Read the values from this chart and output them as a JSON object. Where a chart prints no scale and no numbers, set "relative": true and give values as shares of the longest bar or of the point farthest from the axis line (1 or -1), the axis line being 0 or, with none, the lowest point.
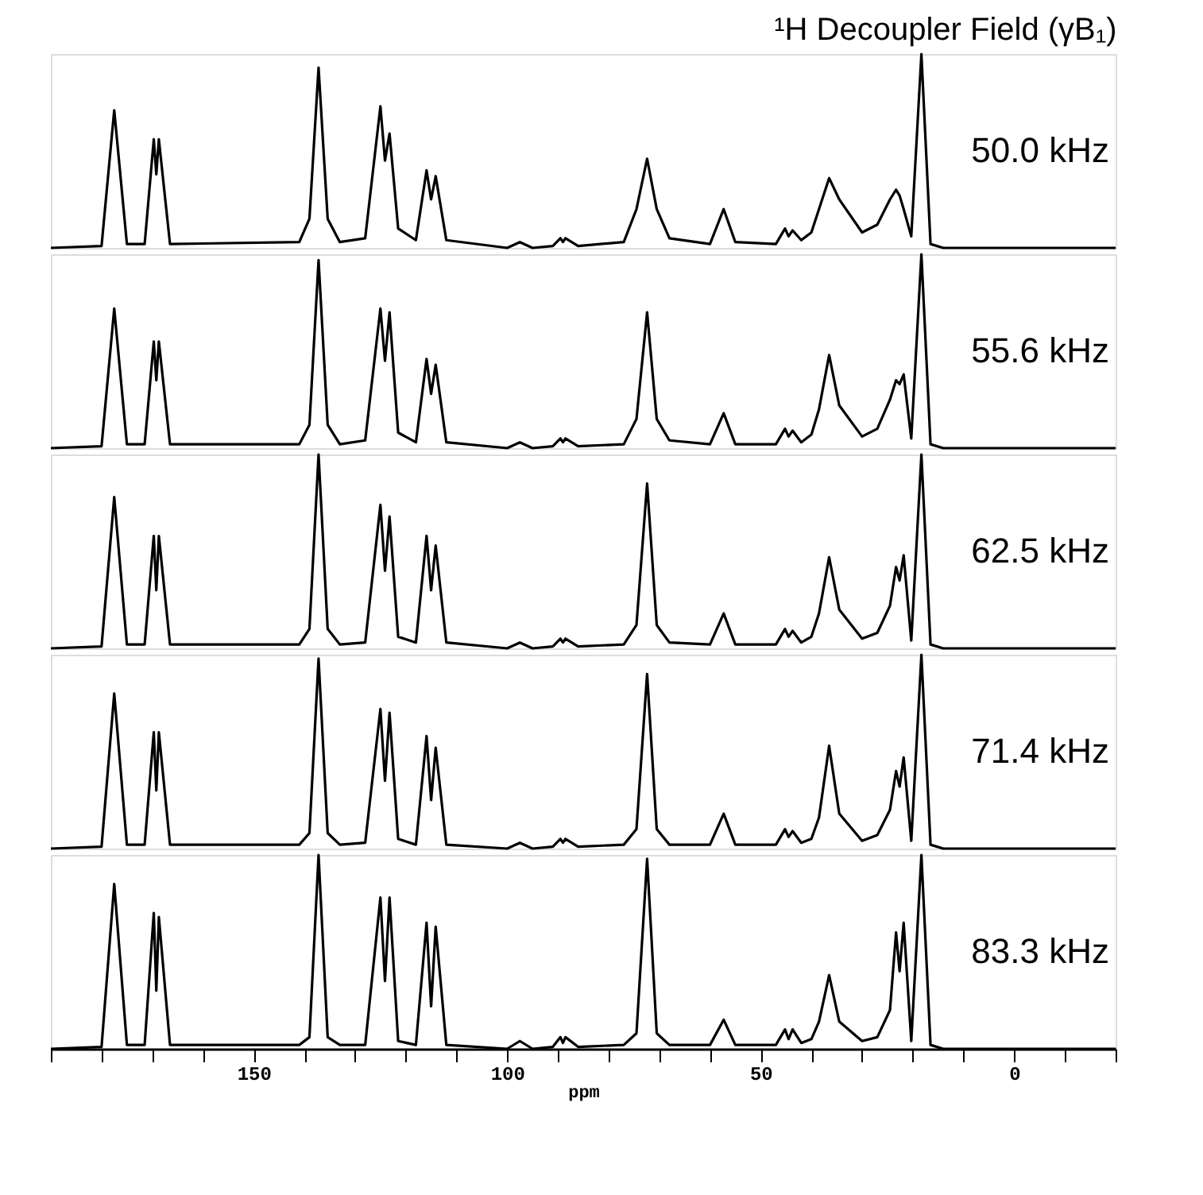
{
  "chart_data": [
    {
      "type": "line",
      "title": "¹H Decoupler Field (γB₁)",
      "relative": true,
      "tick_labels": false,
      "xlim": [
        190,
        -20
      ],
      "line_style": "solid",
      "x": [
        190,
        180,
        177.5,
        175,
        171.5,
        169.7,
        169.2,
        168.7,
        166.5,
        141,
        139,
        137.2,
        135.4,
        133,
        128,
        125,
        124.1,
        123.2,
        121.5,
        118,
        115.9,
        115,
        114.1,
        112,
        100,
        97.5,
        95,
        91,
        89.5,
        89,
        88.5,
        86,
        77,
        74.5,
        72.4,
        70.5,
        68,
        60,
        57.3,
        55,
        47,
        45.2,
        44.5,
        43.7,
        42,
        40,
        38.5,
        36.5,
        34.5,
        30,
        27,
        24.5,
        23.3,
        22.6,
        21.8,
        20.3,
        18.3,
        16.5,
        14,
        -20
      ],
      "series": [
        {
          "name": "50.0 kHz",
          "color": "#000000",
          "values": [
            0,
            0.01,
            0.71,
            0.02,
            0.02,
            0.56,
            0.38,
            0.56,
            0.02,
            0.03,
            0.15,
            0.93,
            0.15,
            0.03,
            0.05,
            0.73,
            0.45,
            0.59,
            0.1,
            0.04,
            0.4,
            0.25,
            0.37,
            0.04,
            0,
            0.03,
            0,
            0.01,
            0.05,
            0.03,
            0.05,
            0.01,
            0.03,
            0.2,
            0.46,
            0.2,
            0.05,
            0.02,
            0.2,
            0.03,
            0.02,
            0.1,
            0.06,
            0.09,
            0.04,
            0.08,
            0.2,
            0.36,
            0.25,
            0.08,
            0.12,
            0.25,
            0.3,
            0.27,
            0.2,
            0.06,
            1,
            0.02,
            0,
            0
          ]
        }
      ]
    },
    {
      "type": "line",
      "relative": true,
      "tick_labels": false,
      "xlim": [
        190,
        -20
      ],
      "line_style": "solid",
      "x": [
        190,
        180,
        177.5,
        175,
        171.5,
        169.7,
        169.2,
        168.7,
        166.5,
        141,
        139,
        137.2,
        135.4,
        133,
        128,
        125,
        124.1,
        123.2,
        121.5,
        118,
        115.9,
        115,
        114.1,
        112,
        100,
        97.5,
        95,
        91,
        89.5,
        89,
        88.5,
        86,
        77,
        74.5,
        72.4,
        70.5,
        68,
        60,
        57.3,
        55,
        47,
        45.2,
        44.5,
        43.7,
        42,
        40,
        38.5,
        36.5,
        34.5,
        30,
        27,
        24.5,
        23.3,
        22.6,
        21.8,
        20.3,
        18.3,
        16.5,
        14,
        -20
      ],
      "series": [
        {
          "name": "55.6 kHz",
          "color": "#000000",
          "values": [
            0,
            0.01,
            0.72,
            0.02,
            0.02,
            0.55,
            0.35,
            0.55,
            0.02,
            0.02,
            0.12,
            0.97,
            0.12,
            0.02,
            0.04,
            0.72,
            0.45,
            0.7,
            0.08,
            0.03,
            0.46,
            0.28,
            0.43,
            0.03,
            0,
            0.03,
            0,
            0.01,
            0.05,
            0.03,
            0.05,
            0.01,
            0.02,
            0.15,
            0.7,
            0.15,
            0.04,
            0.02,
            0.18,
            0.02,
            0.02,
            0.1,
            0.06,
            0.09,
            0.03,
            0.07,
            0.2,
            0.48,
            0.22,
            0.06,
            0.1,
            0.25,
            0.35,
            0.33,
            0.38,
            0.05,
            1,
            0.02,
            0,
            0
          ]
        }
      ]
    },
    {
      "type": "line",
      "relative": true,
      "tick_labels": false,
      "xlim": [
        190,
        -20
      ],
      "line_style": "solid",
      "x": [
        190,
        180,
        177.5,
        175,
        171.5,
        169.7,
        169.2,
        168.7,
        166.5,
        141,
        139,
        137.2,
        135.4,
        133,
        128,
        125,
        124.1,
        123.2,
        121.5,
        118,
        115.9,
        115,
        114.1,
        112,
        100,
        97.5,
        95,
        91,
        89.5,
        89,
        88.5,
        86,
        77,
        74.5,
        72.4,
        70.5,
        68,
        60,
        57.3,
        55,
        47,
        45.2,
        44.5,
        43.7,
        42,
        40,
        38.5,
        36.5,
        34.5,
        30,
        27,
        24.5,
        23.3,
        22.6,
        21.8,
        20.3,
        18.3,
        16.5,
        14,
        -20
      ],
      "series": [
        {
          "name": "62.5 kHz",
          "color": "#000000",
          "values": [
            0,
            0.01,
            0.78,
            0.02,
            0.02,
            0.58,
            0.3,
            0.58,
            0.02,
            0.02,
            0.1,
            1,
            0.1,
            0.02,
            0.03,
            0.74,
            0.4,
            0.68,
            0.06,
            0.03,
            0.58,
            0.3,
            0.53,
            0.03,
            0,
            0.03,
            0,
            0.01,
            0.05,
            0.03,
            0.05,
            0.01,
            0.02,
            0.12,
            0.85,
            0.12,
            0.03,
            0.02,
            0.18,
            0.02,
            0.02,
            0.1,
            0.06,
            0.09,
            0.03,
            0.06,
            0.18,
            0.47,
            0.2,
            0.05,
            0.08,
            0.22,
            0.42,
            0.35,
            0.48,
            0.04,
            1,
            0.02,
            0,
            0
          ]
        }
      ]
    },
    {
      "type": "line",
      "relative": true,
      "tick_labels": false,
      "xlim": [
        190,
        -20
      ],
      "line_style": "solid",
      "x": [
        190,
        180,
        177.5,
        175,
        171.5,
        169.7,
        169.2,
        168.7,
        166.5,
        141,
        139,
        137.2,
        135.4,
        133,
        128,
        125,
        124.1,
        123.2,
        121.5,
        118,
        115.9,
        115,
        114.1,
        112,
        100,
        97.5,
        95,
        91,
        89.5,
        89,
        88.5,
        86,
        77,
        74.5,
        72.4,
        70.5,
        68,
        60,
        57.3,
        55,
        47,
        45.2,
        44.5,
        43.7,
        42,
        40,
        38.5,
        36.5,
        34.5,
        30,
        27,
        24.5,
        23.3,
        22.6,
        21.8,
        20.3,
        18.3,
        16.5,
        14,
        -20
      ],
      "series": [
        {
          "name": "71.4 kHz",
          "color": "#000000",
          "values": [
            0,
            0.01,
            0.8,
            0.02,
            0.02,
            0.6,
            0.3,
            0.6,
            0.02,
            0.02,
            0.08,
            0.98,
            0.08,
            0.02,
            0.03,
            0.72,
            0.35,
            0.7,
            0.05,
            0.02,
            0.58,
            0.25,
            0.52,
            0.02,
            0,
            0.03,
            0,
            0.01,
            0.05,
            0.03,
            0.05,
            0.01,
            0.02,
            0.1,
            0.9,
            0.1,
            0.02,
            0.02,
            0.18,
            0.02,
            0.02,
            0.1,
            0.06,
            0.09,
            0.03,
            0.05,
            0.16,
            0.53,
            0.18,
            0.04,
            0.07,
            0.2,
            0.4,
            0.32,
            0.47,
            0.04,
            1,
            0.02,
            0,
            0
          ]
        }
      ]
    },
    {
      "type": "line",
      "relative": true,
      "tick_labels": "x",
      "xlabel": "ppm",
      "xlim": [
        190,
        -20
      ],
      "line_style": "solid",
      "xticks": [
        {
          "value": 190,
          "label": null
        },
        {
          "value": 180,
          "label": null
        },
        {
          "value": 170,
          "label": null
        },
        {
          "value": 160,
          "label": null
        },
        150,
        {
          "value": 140,
          "label": null
        },
        {
          "value": 130,
          "label": null
        },
        {
          "value": 120,
          "label": null
        },
        {
          "value": 110,
          "label": null
        },
        100,
        {
          "value": 90,
          "label": null
        },
        {
          "value": 80,
          "label": null
        },
        {
          "value": 70,
          "label": null
        },
        {
          "value": 60,
          "label": null
        },
        50,
        {
          "value": 40,
          "label": null
        },
        {
          "value": 30,
          "label": null
        },
        {
          "value": 20,
          "label": null
        },
        {
          "value": 10,
          "label": null
        },
        0,
        {
          "value": -10,
          "label": null
        },
        {
          "value": -20,
          "label": null
        }
      ],
      "x": [
        190,
        180,
        177.5,
        175,
        171.5,
        169.7,
        169.2,
        168.7,
        166.5,
        141,
        139,
        137.2,
        135.4,
        133,
        128,
        125,
        124.1,
        123.2,
        121.5,
        118,
        115.9,
        115,
        114.1,
        112,
        100,
        97.5,
        95,
        91,
        89.5,
        89,
        88.5,
        86,
        77,
        74.5,
        72.4,
        70.5,
        68,
        60,
        57.3,
        55,
        47,
        45.2,
        44.5,
        43.7,
        42,
        40,
        38.5,
        36.5,
        34.5,
        30,
        27,
        24.5,
        23.3,
        22.6,
        21.8,
        20.3,
        18.3,
        16.5,
        14,
        -20
      ],
      "series": [
        {
          "name": "83.3 kHz",
          "color": "#000000",
          "values": [
            0,
            0.01,
            0.85,
            0.02,
            0.02,
            0.7,
            0.3,
            0.68,
            0.02,
            0.02,
            0.06,
            1,
            0.06,
            0.02,
            0.02,
            0.78,
            0.35,
            0.78,
            0.04,
            0.02,
            0.65,
            0.22,
            0.63,
            0.02,
            0,
            0.04,
            0,
            0.01,
            0.06,
            0.03,
            0.06,
            0.01,
            0.02,
            0.08,
            0.98,
            0.08,
            0.02,
            0.02,
            0.15,
            0.02,
            0.02,
            0.1,
            0.05,
            0.1,
            0.03,
            0.05,
            0.14,
            0.38,
            0.14,
            0.04,
            0.06,
            0.2,
            0.6,
            0.4,
            0.65,
            0.04,
            1,
            0.02,
            0,
            0
          ]
        }
      ]
    }
  ]
}
